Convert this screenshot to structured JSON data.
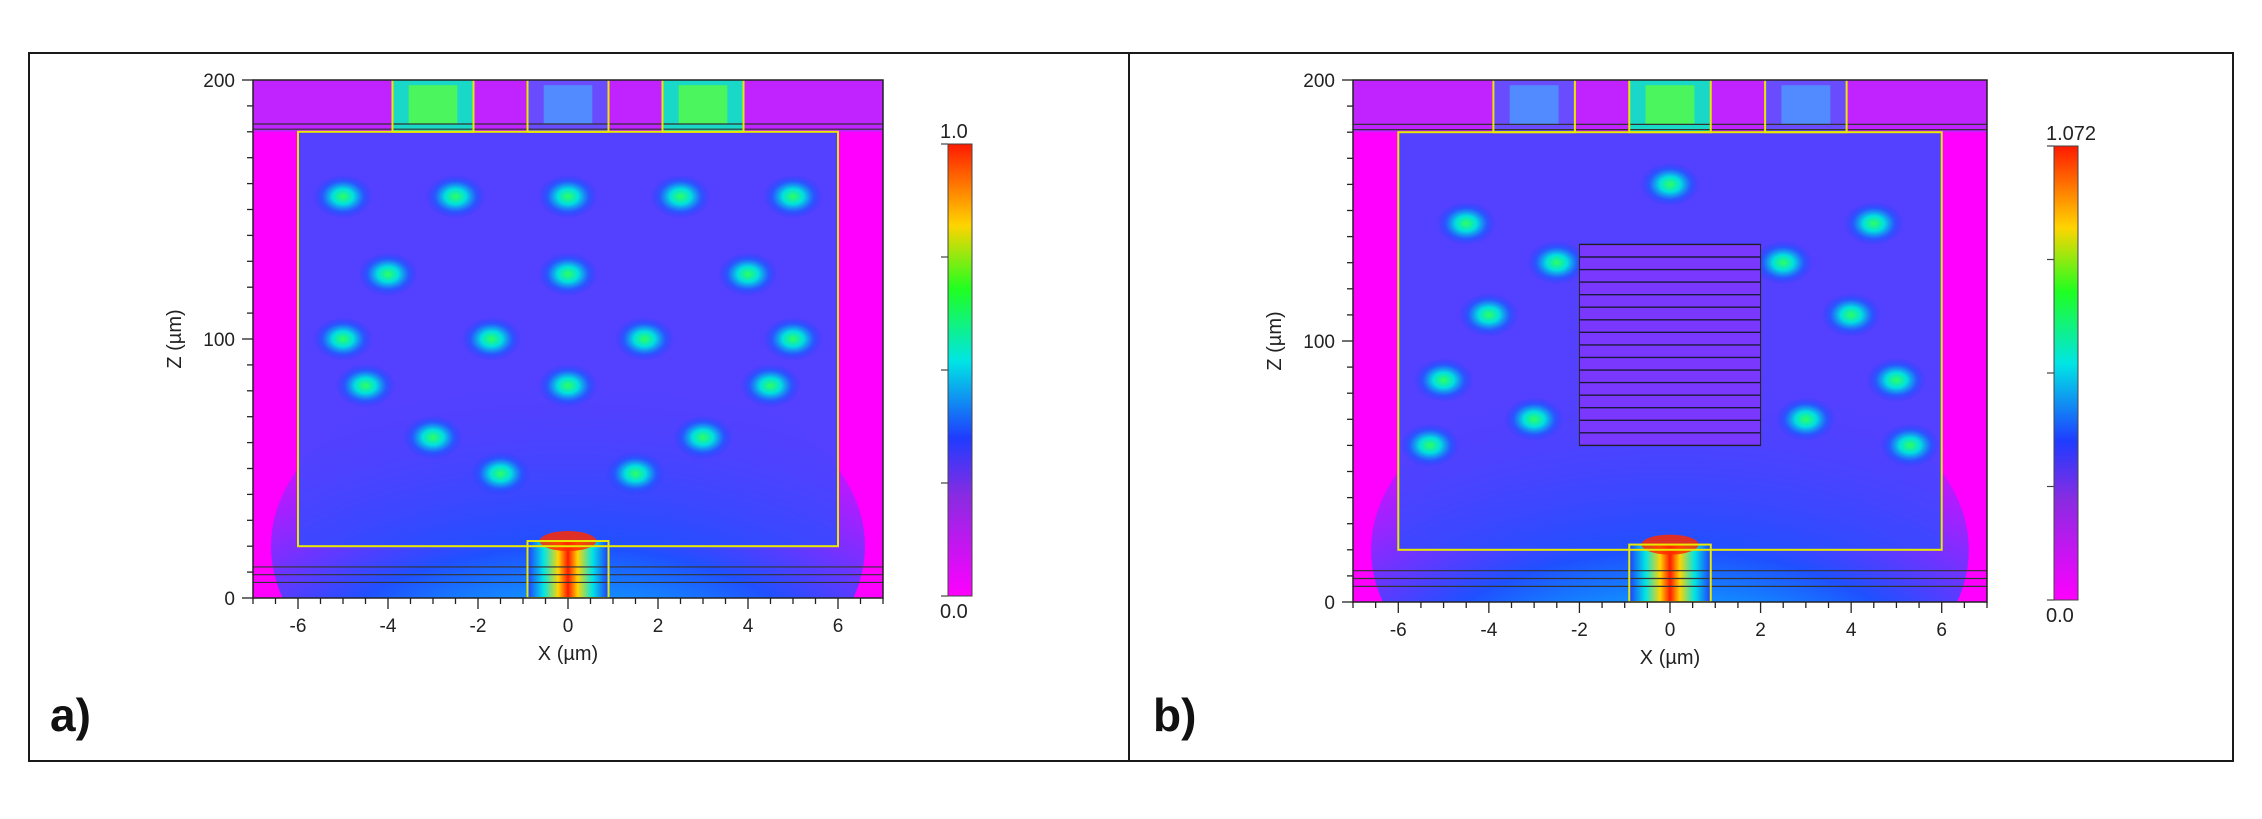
{
  "chart_data": [
    {
      "type": "heatmap",
      "panel_label": "a)",
      "xlabel": "X (µm)",
      "ylabel": "Z (µm)",
      "xlim": [
        -7,
        7
      ],
      "ylim": [
        0,
        200
      ],
      "xticks": [
        -6,
        -4,
        -2,
        0,
        2,
        4,
        6
      ],
      "yticks": [
        0,
        100,
        200
      ],
      "colorbar": {
        "min_label": "0.0",
        "max_label": "1.0",
        "min": 0.0,
        "max": 1.0
      }
    },
    {
      "type": "heatmap",
      "panel_label": "b)",
      "xlabel": "X (µm)",
      "ylabel": "Z (µm)",
      "xlim": [
        -7,
        7
      ],
      "ylim": [
        0,
        200
      ],
      "xticks": [
        -6,
        -4,
        -2,
        0,
        2,
        4,
        6
      ],
      "yticks": [
        0,
        100,
        200
      ],
      "colorbar": {
        "min_label": "0.0",
        "max_label": "1.072",
        "min": 0.0,
        "max": 1.072
      }
    }
  ],
  "colors": {
    "low": "#ff00ff",
    "mid_low": "#1f3cff",
    "mid": "#00e5e5",
    "mid_high": "#20ff20",
    "high": "#ff1a00",
    "outline": "#e8e800"
  }
}
